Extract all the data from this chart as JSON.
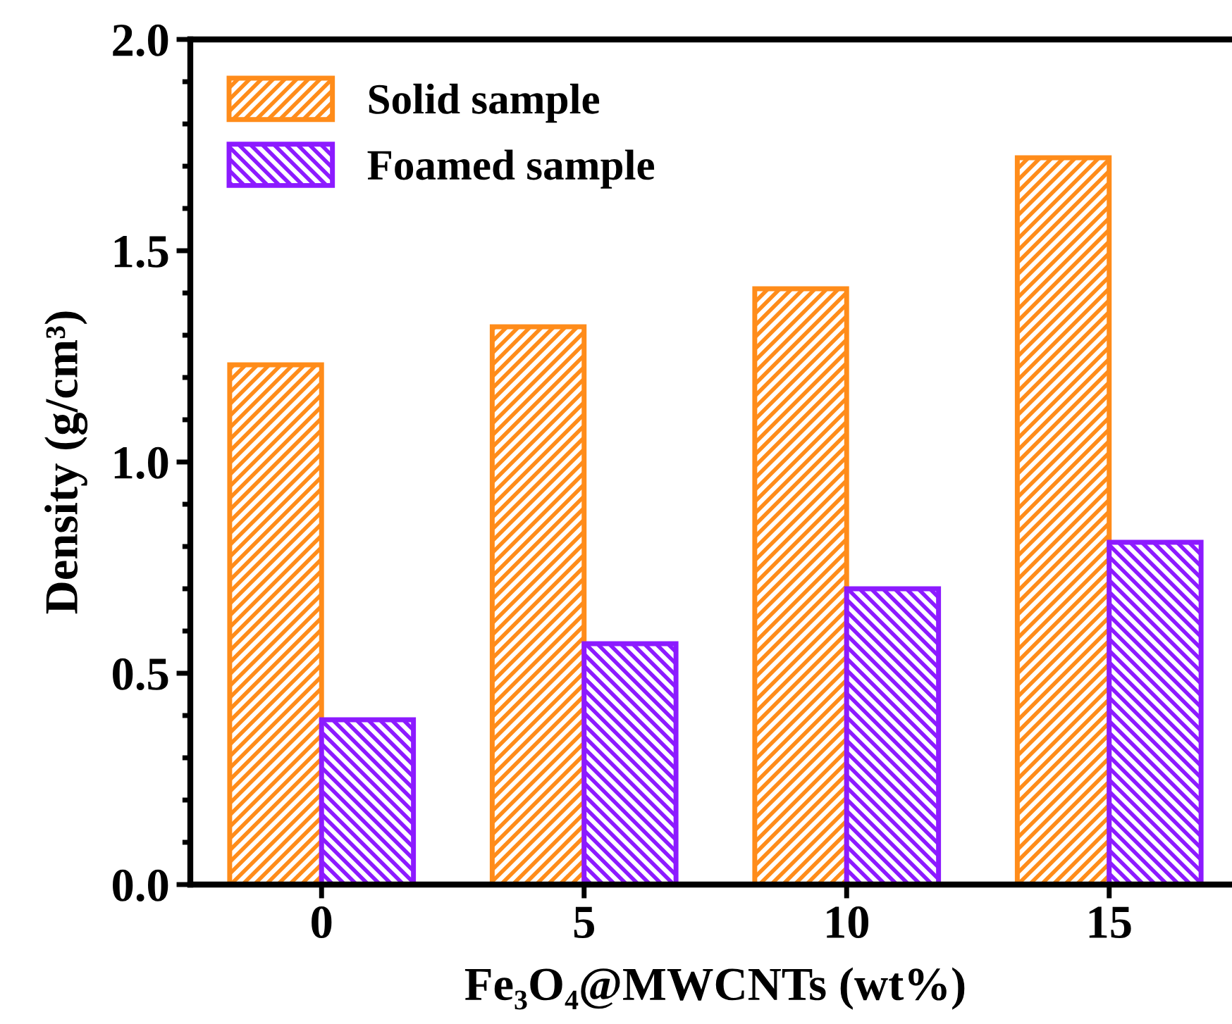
{
  "chart_data": {
    "type": "bar",
    "xlabel": "Fe₃O₄@MWCNTs (wt%)",
    "ylabel": "Density (g/cm³)",
    "categories": [
      "0",
      "5",
      "10",
      "15"
    ],
    "series": [
      {
        "name": "Solid sample",
        "color": "#ff8c1a",
        "values": [
          1.23,
          1.32,
          1.41,
          1.72
        ]
      },
      {
        "name": "Foamed sample",
        "color": "#8c1aff",
        "values": [
          0.39,
          0.57,
          0.7,
          0.81
        ]
      }
    ],
    "ylim": [
      0,
      2.0
    ],
    "yticks": [
      {
        "value": 0,
        "label": "0.0"
      },
      0.5,
      {
        "value": 1,
        "label": "1.0"
      },
      1.5,
      {
        "value": 2,
        "label": "2.0"
      }
    ],
    "grid": false,
    "legend": "top left"
  }
}
